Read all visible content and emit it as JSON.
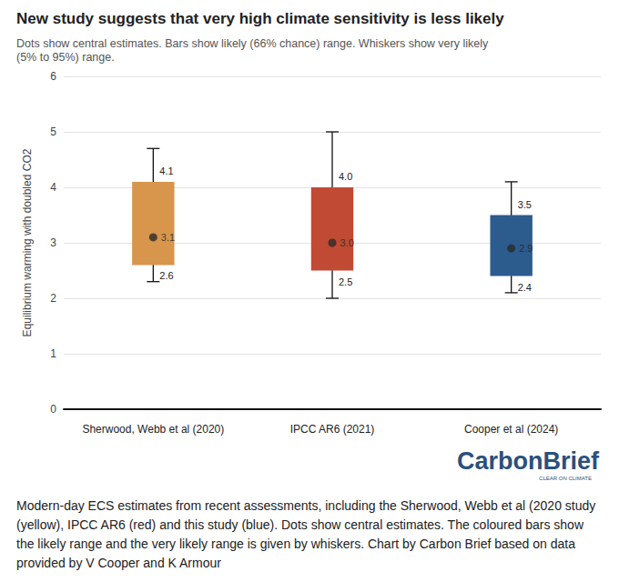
{
  "chart_data": {
    "type": "boxplot",
    "title": "New study suggests that very high climate sensitivity is less likely",
    "subtitle": "Dots show central estimates. Bars show likely (66% chance) range. Whiskers show very likely (5% to 95%) range.",
    "ylabel": "Equilibrium warming with doubled CO2",
    "caption": "Modern-day ECS estimates from recent assessments, including the Sherwood, Webb et al (2020 study (yellow), IPCC AR6 (red) and this study (blue). Dots show central estimates. The coloured bars show the likely range and the very likely range is given by whiskers. Chart by Carbon Brief based on data provided by V Cooper and K Armour",
    "logo": "CarbonBrief",
    "logo_tagline": "CLEAR ON CLIMATE",
    "categories": [
      "Sherwood, Webb et al (2020)",
      "IPCC AR6 (2021)",
      "Cooper et al (2024)"
    ],
    "values": [
      3.1,
      3.0,
      2.9
    ],
    "value_labels": [
      "3.1",
      "3.0",
      "2.9"
    ],
    "likely_range": [
      [
        2.6,
        4.1
      ],
      [
        2.5,
        4.0
      ],
      [
        2.4,
        3.5
      ]
    ],
    "likely_range_labels": [
      [
        "2.6",
        "4.1"
      ],
      [
        "2.5",
        "4.0"
      ],
      [
        "2.4",
        "3.5"
      ]
    ],
    "very_likely_range": [
      [
        2.3,
        4.7
      ],
      [
        2.0,
        5.0
      ],
      [
        2.1,
        4.1
      ]
    ],
    "colors": [
      "#d8954c",
      "#c04a33",
      "#2c5b8e"
    ],
    "ylim": [
      0,
      6
    ],
    "yticks": [
      0,
      1,
      2,
      3,
      4,
      5,
      6
    ],
    "grid": true,
    "data_labels": true
  }
}
